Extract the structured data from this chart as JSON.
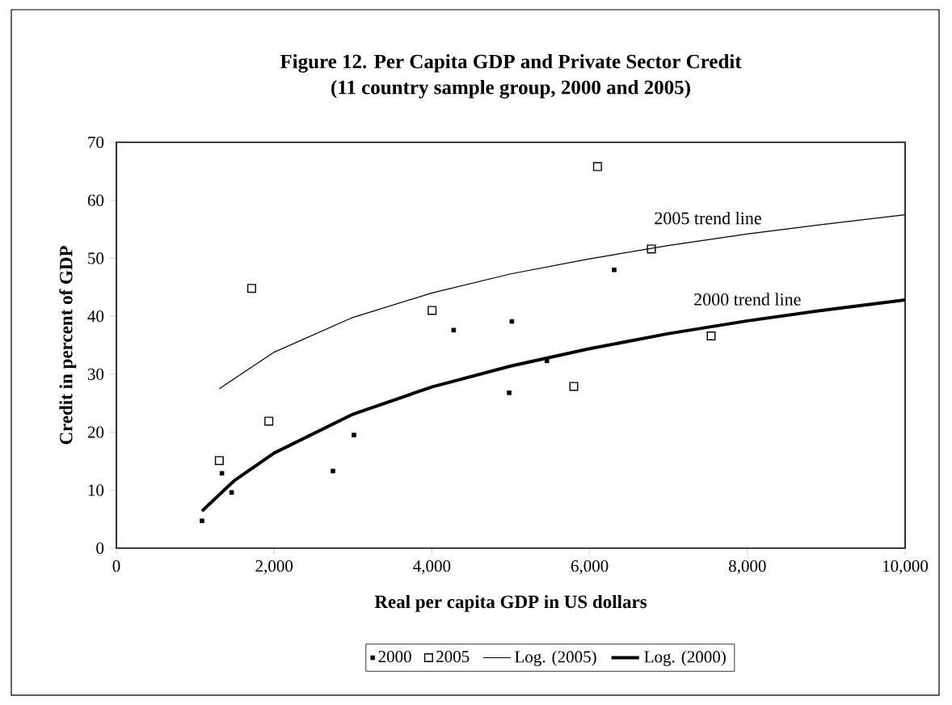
{
  "chart_data": {
    "type": "scatter",
    "title": "Figure 12. Per Capita GDP and Private Sector Credit",
    "subtitle": "(11 country sample group, 2000 and 2005)",
    "xlabel": "Real per capita GDP in US dollars",
    "ylabel": "Credit in percent of GDP",
    "xlim": [
      0,
      10000
    ],
    "xticks": [
      0,
      {
        "value": 2000,
        "label": "2,000"
      },
      {
        "value": 4000,
        "label": "4,000"
      },
      {
        "value": 6000,
        "label": "6,000"
      },
      {
        "value": 8000,
        "label": "8,000"
      },
      {
        "value": 10000,
        "label": "10,000"
      }
    ],
    "ylim": [
      0,
      70
    ],
    "yticks": [
      0,
      10,
      20,
      30,
      40,
      50,
      60,
      70
    ],
    "grid": false,
    "legend": "bottom",
    "series": [
      {
        "name": "2000",
        "marker": "square",
        "color": "#000000",
        "x": [
          1086,
          1338,
          1461,
          2746,
          3012,
          4276,
          4980,
          5014,
          5458,
          6311
        ],
        "values": [
          4.7,
          12.9,
          9.6,
          13.3,
          19.5,
          37.6,
          26.8,
          39.1,
          32.3,
          48.0
        ]
      },
      {
        "name": "2005",
        "marker": "square",
        "color": "#000000",
        "x": [
          1305,
          1715,
          1933,
          4003,
          5799,
          6100,
          6783,
          7541
        ],
        "values": [
          15.1,
          44.8,
          21.9,
          41.0,
          27.9,
          65.8,
          51.6,
          36.6
        ]
      },
      {
        "name": "Log. (2005)",
        "type": "line",
        "marker": "none",
        "line_style": "solid",
        "color": "#000000",
        "x": [
          1305,
          2000,
          3000,
          4000,
          5000,
          6000,
          7000,
          8000,
          9000,
          10000
        ],
        "values": [
          27.5,
          33.8,
          39.8,
          44.0,
          47.3,
          49.9,
          52.2,
          54.2,
          55.9,
          57.5
        ]
      },
      {
        "name": "Log. (2000)",
        "type": "line",
        "marker": "none",
        "line_style": "solid",
        "color": "#000000",
        "x": [
          1086,
          1500,
          2000,
          3000,
          4000,
          5000,
          6000,
          7000,
          8000,
          9000,
          10000
        ],
        "values": [
          6.4,
          11.7,
          16.4,
          23.1,
          27.8,
          31.4,
          34.4,
          37.0,
          39.2,
          41.1,
          42.8
        ]
      }
    ],
    "annotations": [
      {
        "text": "2005 trend line",
        "x": 7500,
        "y": 53.2
      },
      {
        "text": "2000 trend line",
        "x": 8000,
        "y": 39.2
      }
    ]
  }
}
